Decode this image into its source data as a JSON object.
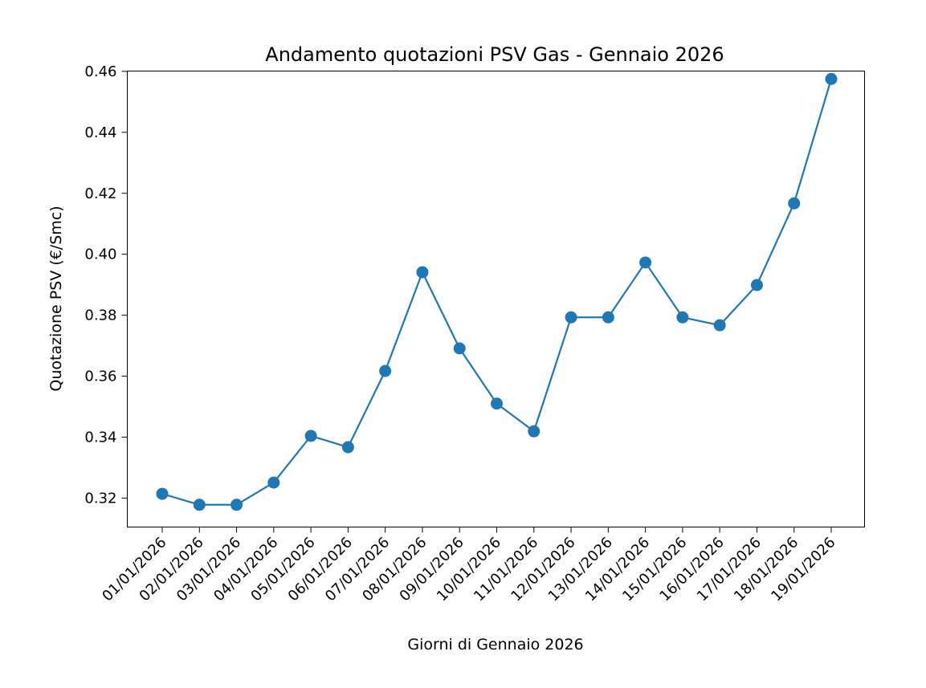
{
  "chart_data": {
    "type": "line",
    "title": "Andamento quotazioni PSV Gas - Gennaio 2026",
    "xlabel": "Giorni di Gennaio 2026",
    "ylabel": "Quotazione PSV (€/Smc)",
    "categories": [
      "01/01/2026",
      "02/01/2026",
      "03/01/2026",
      "04/01/2026",
      "05/01/2026",
      "06/01/2026",
      "07/01/2026",
      "08/01/2026",
      "09/01/2026",
      "10/01/2026",
      "11/01/2026",
      "12/01/2026",
      "13/01/2026",
      "14/01/2026",
      "15/01/2026",
      "16/01/2026",
      "17/01/2026",
      "18/01/2026",
      "19/01/2026"
    ],
    "series": [
      {
        "values": [
          0.3214,
          0.3178,
          0.3178,
          0.3251,
          0.3404,
          0.3367,
          0.3617,
          0.3941,
          0.3691,
          0.351,
          0.3419,
          0.3793,
          0.3793,
          0.3973,
          0.3793,
          0.3767,
          0.3899,
          0.4167,
          0.4575
        ],
        "color": "#1f77b4"
      }
    ],
    "ylim": [
      0.3105,
      0.4601
    ],
    "yticks": [
      "0.32",
      "0.34",
      "0.36",
      "0.38",
      "0.40",
      "0.42",
      "0.44",
      "0.46"
    ],
    "grid": false,
    "legend": "none",
    "marker": "circle"
  }
}
